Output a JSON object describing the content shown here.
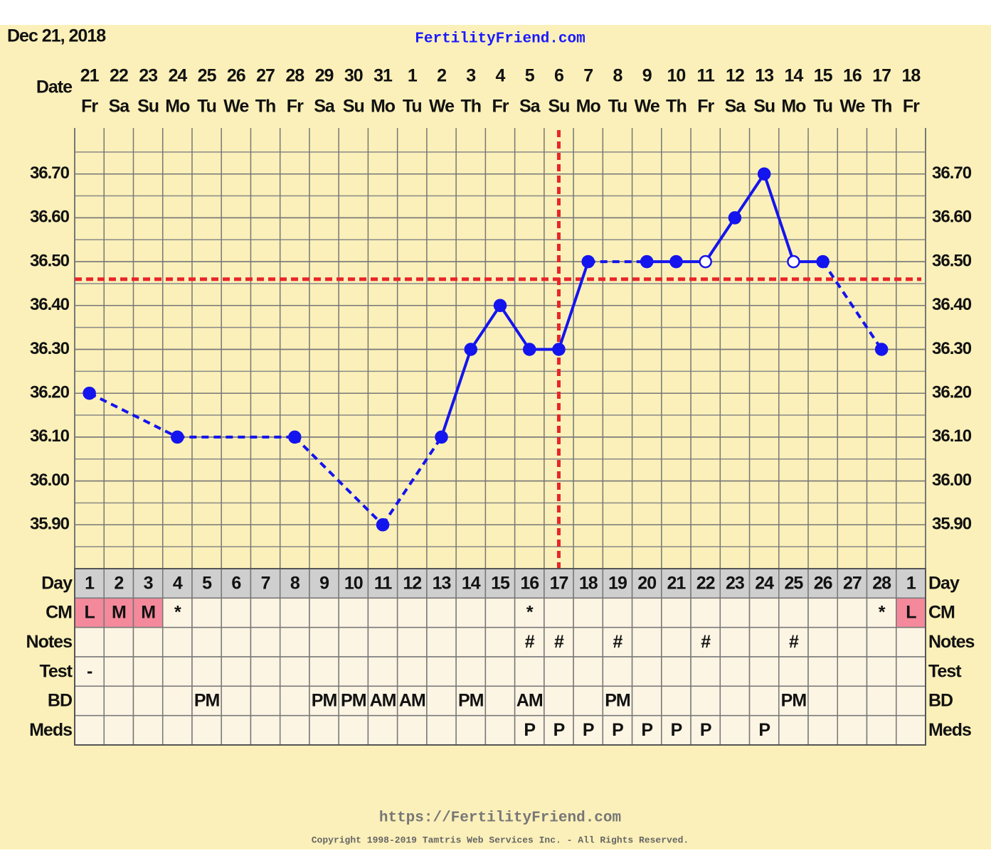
{
  "chart_data": {
    "type": "line",
    "date": "Dec 21, 2018",
    "title": "FertilityFriend.com",
    "x_label": "Date",
    "dates": [
      21,
      22,
      23,
      24,
      25,
      26,
      27,
      28,
      29,
      30,
      31,
      1,
      2,
      3,
      4,
      5,
      6,
      7,
      8,
      9,
      10,
      11,
      12,
      13,
      14,
      15,
      16,
      17,
      18
    ],
    "weekdays": [
      "Fr",
      "Sa",
      "Su",
      "Mo",
      "Tu",
      "We",
      "Th",
      "Fr",
      "Sa",
      "Su",
      "Mo",
      "Tu",
      "We",
      "Th",
      "Fr",
      "Sa",
      "Su",
      "Mo",
      "Tu",
      "We",
      "Th",
      "Fr",
      "Sa",
      "Su",
      "Mo",
      "Tu",
      "We",
      "Th",
      "Fr"
    ],
    "series": [
      {
        "color": "#1414ee",
        "values": [
          36.2,
          null,
          null,
          36.1,
          null,
          null,
          null,
          36.1,
          null,
          null,
          35.9,
          null,
          36.1,
          36.3,
          36.4,
          36.3,
          36.3,
          36.5,
          null,
          36.5,
          36.5,
          36.5,
          36.6,
          36.7,
          36.5,
          36.5,
          null,
          36.3,
          null
        ]
      }
    ],
    "open_markers": [
      21,
      24
    ],
    "ylim": [
      35.8,
      36.8
    ],
    "yticks": [
      {
        "value": 35.9,
        "label": "35.90"
      },
      {
        "value": 36.0,
        "label": "36.00"
      },
      {
        "value": 36.1,
        "label": "36.10"
      },
      {
        "value": 36.2,
        "label": "36.20"
      },
      {
        "value": 36.3,
        "label": "36.30"
      },
      {
        "value": 36.4,
        "label": "36.40"
      },
      {
        "value": 36.5,
        "label": "36.50"
      },
      {
        "value": 36.6,
        "label": "36.60"
      },
      {
        "value": 36.7,
        "label": "36.70"
      }
    ],
    "grid": true,
    "coverline": 36.46,
    "ovulation_day": 17,
    "marker_line_color": "#e8262a",
    "table": {
      "rows": [
        {
          "label": "Day",
          "cells": [
            1,
            2,
            3,
            4,
            5,
            6,
            7,
            8,
            9,
            10,
            11,
            12,
            13,
            14,
            15,
            16,
            17,
            18,
            19,
            20,
            21,
            22,
            23,
            24,
            25,
            26,
            27,
            28,
            1
          ]
        },
        {
          "label": "CM",
          "cells": [
            "L",
            "M",
            "M",
            "*",
            null,
            null,
            null,
            null,
            null,
            null,
            null,
            null,
            null,
            null,
            null,
            "*",
            null,
            null,
            null,
            null,
            null,
            null,
            null,
            null,
            null,
            null,
            null,
            "*",
            "L"
          ]
        },
        {
          "label": "Notes",
          "cells": [
            null,
            null,
            null,
            null,
            null,
            null,
            null,
            null,
            null,
            null,
            null,
            null,
            null,
            null,
            null,
            "#",
            "#",
            null,
            "#",
            null,
            null,
            "#",
            null,
            null,
            "#",
            null,
            null,
            null,
            null
          ]
        },
        {
          "label": "Test",
          "cells": [
            "-",
            null,
            null,
            null,
            null,
            null,
            null,
            null,
            null,
            null,
            null,
            null,
            null,
            null,
            null,
            null,
            null,
            null,
            null,
            null,
            null,
            null,
            null,
            null,
            null,
            null,
            null,
            null,
            null
          ]
        },
        {
          "label": "BD",
          "cells": [
            null,
            null,
            null,
            null,
            "PM",
            null,
            null,
            null,
            "PM",
            "PM",
            "AM",
            "AM",
            null,
            "PM",
            null,
            "AM",
            null,
            null,
            "PM",
            null,
            null,
            null,
            null,
            null,
            "PM",
            null,
            null,
            null,
            null
          ]
        },
        {
          "label": "Meds",
          "cells": [
            null,
            null,
            null,
            null,
            null,
            null,
            null,
            null,
            null,
            null,
            null,
            null,
            null,
            null,
            null,
            "P",
            "P",
            "P",
            "P",
            "P",
            "P",
            "P",
            null,
            "P",
            null,
            null,
            null,
            null,
            null
          ]
        }
      ]
    },
    "cm_highlight": [
      "L",
      "M"
    ],
    "highlight_color": "#f4899c",
    "footer": {
      "url": "https://FertilityFriend.com",
      "copyright": "Copyright 1998-2019 Tamtris Web Services Inc. - All Rights Reserved."
    }
  }
}
